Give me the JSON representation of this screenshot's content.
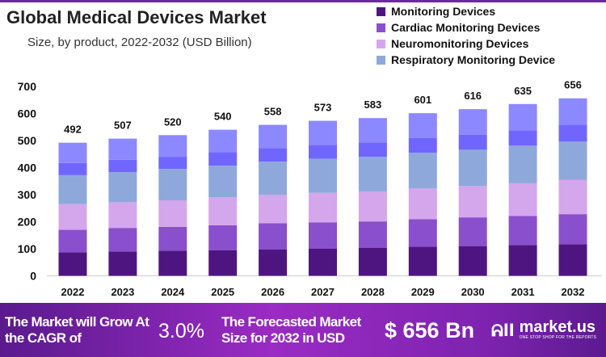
{
  "chart_data": {
    "type": "bar",
    "stacked": true,
    "title": "Global Medical Devices Market",
    "subtitle": "Size, by product, 2022-2032 (USD Billion)",
    "categories": [
      "2022",
      "2023",
      "2024",
      "2025",
      "2026",
      "2027",
      "2028",
      "2029",
      "2030",
      "2031",
      "2032"
    ],
    "totals": [
      492,
      507,
      520,
      540,
      558,
      573,
      583,
      601,
      616,
      635,
      656
    ],
    "series": [
      {
        "name": "Monitoring Devices",
        "color": "#4e1580",
        "values": [
          87,
          90,
          93,
          95,
          97,
          100,
          103,
          108,
          110,
          114,
          117
        ]
      },
      {
        "name": "Cardiac Monitoring Devices",
        "color": "#8a4fcc",
        "values": [
          83,
          87,
          88,
          92,
          97,
          97,
          98,
          101,
          106,
          107,
          111
        ]
      },
      {
        "name": "Neuromonitoring Devices",
        "color": "#d4a6ec",
        "values": [
          95,
          95,
          98,
          104,
          105,
          110,
          111,
          114,
          116,
          121,
          126
        ]
      },
      {
        "name": "Respiratory Monitoring Device",
        "color": "#8fa8db",
        "values": [
          107,
          111,
          116,
          116,
          123,
          126,
          128,
          132,
          134,
          139,
          142
        ]
      },
      {
        "color": "#7066ff",
        "values": [
          45,
          46,
          45,
          50,
          50,
          51,
          53,
          55,
          56,
          57,
          62
        ]
      },
      {
        "color": "#8c88ff",
        "values": [
          75,
          78,
          80,
          83,
          86,
          89,
          90,
          91,
          94,
          97,
          98
        ]
      }
    ],
    "ylim": [
      0,
      700
    ],
    "yticks": [
      "0",
      "100",
      "200",
      "300",
      "400",
      "500",
      "600",
      "700"
    ],
    "grid": false,
    "legend": "top-right"
  },
  "footer": {
    "cagr_label": "The Market will Grow At the CAGR of",
    "cagr_value": "3.0%",
    "forecast_label": "The Forecasted Market Size for 2032 in USD",
    "forecast_value": "$ 656 Bn",
    "logo_text": "market.us",
    "logo_tagline": "ONE STOP SHOP FOR THE REPORTS"
  }
}
